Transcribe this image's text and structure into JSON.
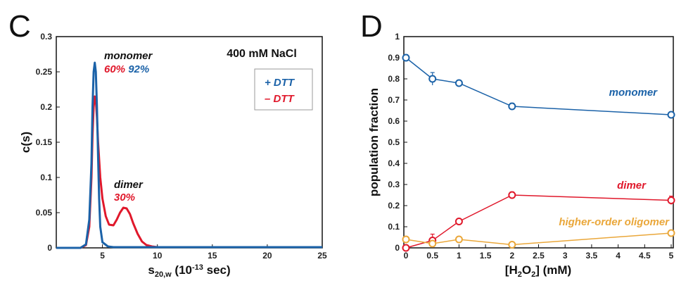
{
  "colors": {
    "blue": "#1b62a8",
    "red": "#e0182b",
    "orange": "#eaa73a",
    "dark": "#111111"
  },
  "chart_data": [
    {
      "panel": "C",
      "type": "line",
      "xlabel_main": "s",
      "xlabel_sub": "20,w",
      "xlabel_pre": " (10",
      "xlabel_sup": "-13",
      "xlabel_post": " sec)",
      "ylabel": "c(s)",
      "xlim": [
        0.8,
        25
      ],
      "ylim": [
        0,
        0.3
      ],
      "xticks": [
        5,
        10,
        15,
        20,
        25
      ],
      "yticks": [
        0,
        0.05,
        0.1,
        0.15,
        0.2,
        0.25,
        0.3
      ],
      "ytick_labels": [
        "0",
        "0.05",
        "0.1",
        "0.15",
        "0.2",
        "0.25",
        "0.3"
      ],
      "condition": "400 mM NaCl",
      "legend": {
        "placement": "top-right",
        "entries": [
          {
            "label": "+ DTT",
            "color": "#1b62a8"
          },
          {
            "label": "– DTT",
            "color": "#e0182b"
          }
        ]
      },
      "annotations": {
        "monomer_label": "monomer",
        "monomer_pct_minus": "60%",
        "monomer_pct_plus": "92%",
        "dimer_label": "dimer",
        "dimer_pct": "30%"
      },
      "series": [
        {
          "name": "+ DTT",
          "color": "#1b62a8",
          "x": [
            0.8,
            3.0,
            3.5,
            3.8,
            4.0,
            4.1,
            4.2,
            4.3,
            4.4,
            4.5,
            4.6,
            4.7,
            4.8,
            5.0,
            5.5,
            6.0,
            8.0,
            25
          ],
          "y": [
            0,
            0,
            0.005,
            0.04,
            0.12,
            0.2,
            0.25,
            0.263,
            0.25,
            0.2,
            0.13,
            0.07,
            0.03,
            0.008,
            0.002,
            0.001,
            0.001,
            0.001
          ]
        },
        {
          "name": "– DTT",
          "color": "#e0182b",
          "x": [
            0.8,
            3.0,
            3.5,
            3.8,
            4.0,
            4.1,
            4.2,
            4.3,
            4.4,
            4.5,
            4.6,
            4.8,
            5.0,
            5.3,
            5.6,
            6.0,
            6.3,
            6.6,
            6.9,
            7.2,
            7.5,
            7.8,
            8.2,
            8.6,
            9.0,
            9.5,
            10,
            12,
            15,
            20,
            25
          ],
          "y": [
            0,
            0,
            0.004,
            0.03,
            0.1,
            0.16,
            0.2,
            0.215,
            0.21,
            0.185,
            0.15,
            0.1,
            0.07,
            0.045,
            0.033,
            0.032,
            0.04,
            0.05,
            0.057,
            0.056,
            0.048,
            0.035,
            0.02,
            0.009,
            0.004,
            0.002,
            0.001,
            0.001,
            0.001,
            0.001,
            0.001
          ]
        }
      ]
    },
    {
      "panel": "D",
      "type": "line",
      "xlabel_pre": "[H",
      "xlabel_sub1": "2",
      "xlabel_mid": "O",
      "xlabel_sub2": "2",
      "xlabel_post": "] (mM)",
      "ylabel": "population fraction",
      "xlim": [
        0,
        5
      ],
      "ylim": [
        0,
        1
      ],
      "xticks": [
        0,
        0.5,
        1,
        1.5,
        2,
        2.5,
        3,
        3.5,
        4,
        4.5,
        5
      ],
      "xtick_labels": [
        "0",
        "0.5",
        "1",
        "1.5",
        "2",
        "2.5",
        "3",
        "3.5",
        "4",
        "4.5",
        "5"
      ],
      "yticks": [
        0,
        0.1,
        0.2,
        0.3,
        0.4,
        0.5,
        0.6,
        0.7,
        0.8,
        0.9,
        1
      ],
      "ytick_labels": [
        "0",
        "0.1",
        "0.2",
        "0.3",
        "0.4",
        "0.5",
        "0.6",
        "0.7",
        "0.8",
        "0.9",
        "1"
      ],
      "series": [
        {
          "name": "monomer",
          "color": "#1b62a8",
          "x": [
            0,
            0.5,
            1,
            2,
            5
          ],
          "y": [
            0.9,
            0.8,
            0.78,
            0.67,
            0.63
          ],
          "err": [
            0.015,
            0.03,
            0.01,
            0.015,
            0.01
          ]
        },
        {
          "name": "dimer",
          "color": "#e0182b",
          "x": [
            0,
            0.5,
            1,
            2,
            5
          ],
          "y": [
            0.0,
            0.035,
            0.125,
            0.25,
            0.225
          ],
          "err": [
            0.005,
            0.03,
            0.01,
            0.015,
            0.02
          ]
        },
        {
          "name": "higher-order oligomer",
          "color": "#eaa73a",
          "x": [
            0,
            0.5,
            1,
            2,
            5
          ],
          "y": [
            0.04,
            0.02,
            0.04,
            0.015,
            0.07
          ],
          "err": [
            0.005,
            0.01,
            0.005,
            0.005,
            0.008
          ]
        }
      ]
    }
  ]
}
